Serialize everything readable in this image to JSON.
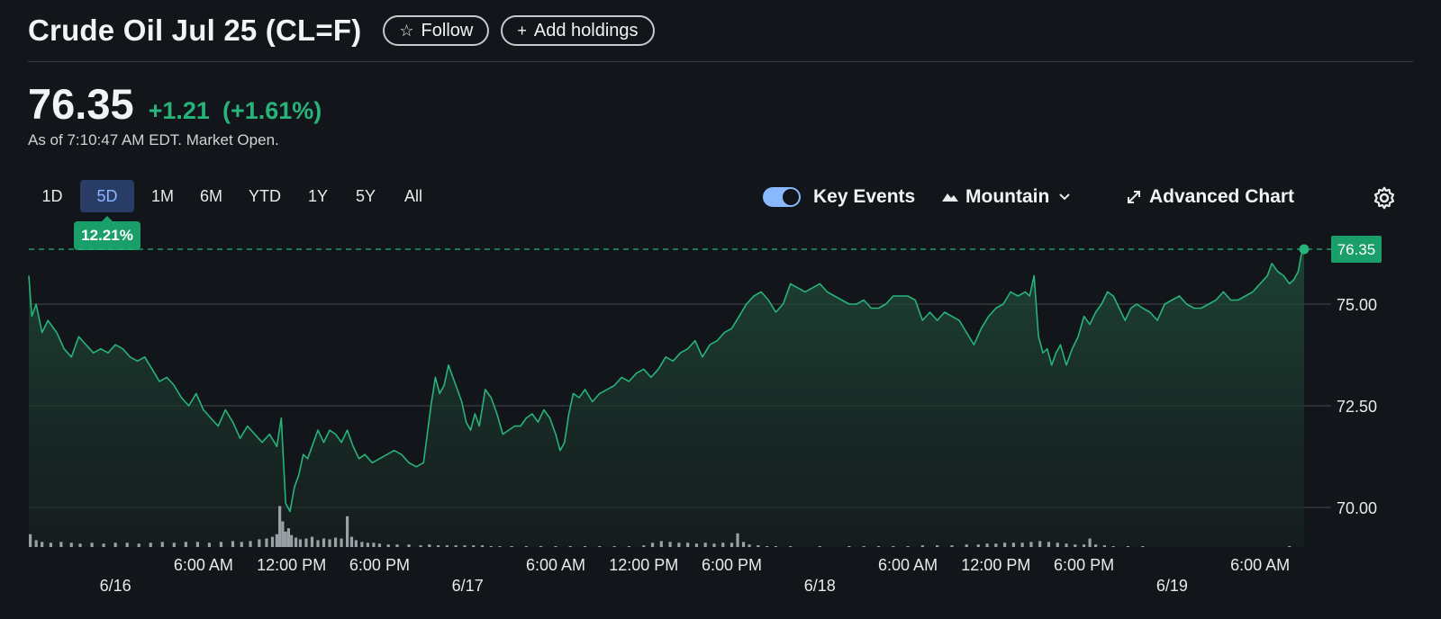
{
  "header": {
    "title": "Crude Oil Jul 25 (CL=F)",
    "follow_label": "Follow",
    "add_holdings_label": "Add holdings"
  },
  "quote": {
    "price": "76.35",
    "change": "+1.21",
    "change_pct": "(+1.61%)",
    "as_of": "As of 7:10:47 AM EDT. Market Open."
  },
  "ranges": [
    "1D",
    "5D",
    "1M",
    "6M",
    "YTD",
    "1Y",
    "5Y",
    "All"
  ],
  "active_range": "5D",
  "range_badge": "12.21%",
  "toolbar": {
    "key_events_label": "Key Events",
    "key_events_on": true,
    "chart_type_label": "Mountain",
    "advanced_label": "Advanced Chart"
  },
  "colors": {
    "line": "#27b37a",
    "accent_blue": "#8ab8ff",
    "volume": "#9aa0a6",
    "background": "#121519"
  },
  "chart_data": {
    "type": "area",
    "ylim": [
      69.1,
      77.0
    ],
    "y_ticks": [
      "75.00",
      "72.50",
      "70.00"
    ],
    "y_tick_values": [
      75.0,
      72.5,
      70.0
    ],
    "last_price_label": "76.35",
    "last_price": 76.35,
    "x_time_labels": [
      "6:00 AM",
      "12:00 PM",
      "6:00 PM",
      "6:00 AM",
      "12:00 PM",
      "6:00 PM",
      "6:00 AM",
      "12:00 PM",
      "6:00 PM",
      "6:00 AM"
    ],
    "x_time_hours": [
      30,
      36,
      42,
      54,
      60,
      66,
      78,
      84,
      90,
      102
    ],
    "x_date_labels": [
      "6/16",
      "6/17",
      "6/18",
      "6/19"
    ],
    "x_date_hours": [
      24,
      48,
      72,
      96
    ],
    "x_range_hours": [
      18.1,
      105.0
    ],
    "series": [
      {
        "points": [
          [
            18.1,
            75.7
          ],
          [
            18.3,
            74.7
          ],
          [
            18.6,
            75.0
          ],
          [
            19.0,
            74.3
          ],
          [
            19.4,
            74.6
          ],
          [
            20.0,
            74.3
          ],
          [
            20.5,
            73.9
          ],
          [
            21.0,
            73.7
          ],
          [
            21.5,
            74.2
          ],
          [
            22.0,
            74.0
          ],
          [
            22.5,
            73.8
          ],
          [
            23.0,
            73.9
          ],
          [
            23.5,
            73.8
          ],
          [
            24.0,
            74.0
          ],
          [
            24.5,
            73.9
          ],
          [
            25.0,
            73.7
          ],
          [
            25.5,
            73.6
          ],
          [
            26.0,
            73.7
          ],
          [
            26.5,
            73.4
          ],
          [
            27.0,
            73.1
          ],
          [
            27.5,
            73.2
          ],
          [
            28.0,
            73.0
          ],
          [
            28.5,
            72.7
          ],
          [
            29.0,
            72.5
          ],
          [
            29.5,
            72.8
          ],
          [
            30.0,
            72.4
          ],
          [
            30.5,
            72.2
          ],
          [
            31.0,
            72.0
          ],
          [
            31.5,
            72.4
          ],
          [
            32.0,
            72.1
          ],
          [
            32.5,
            71.7
          ],
          [
            33.0,
            72.0
          ],
          [
            33.5,
            71.8
          ],
          [
            34.0,
            71.6
          ],
          [
            34.5,
            71.8
          ],
          [
            35.0,
            71.5
          ],
          [
            35.3,
            72.2
          ],
          [
            35.6,
            70.1
          ],
          [
            35.9,
            69.9
          ],
          [
            36.2,
            70.5
          ],
          [
            36.5,
            70.8
          ],
          [
            36.8,
            71.3
          ],
          [
            37.1,
            71.2
          ],
          [
            37.5,
            71.6
          ],
          [
            37.8,
            71.9
          ],
          [
            38.2,
            71.6
          ],
          [
            38.6,
            71.9
          ],
          [
            39.0,
            71.8
          ],
          [
            39.4,
            71.6
          ],
          [
            39.8,
            71.9
          ],
          [
            40.2,
            71.5
          ],
          [
            40.6,
            71.2
          ],
          [
            41.0,
            71.3
          ],
          [
            41.5,
            71.1
          ],
          [
            42.0,
            71.2
          ],
          [
            42.5,
            71.3
          ],
          [
            43.0,
            71.4
          ],
          [
            43.5,
            71.3
          ],
          [
            44.0,
            71.1
          ],
          [
            44.5,
            71.0
          ],
          [
            45.0,
            71.1
          ],
          [
            45.5,
            72.5
          ],
          [
            45.8,
            73.2
          ],
          [
            46.1,
            72.8
          ],
          [
            46.4,
            73.0
          ],
          [
            46.7,
            73.5
          ],
          [
            47.0,
            73.2
          ],
          [
            47.3,
            72.9
          ],
          [
            47.6,
            72.6
          ],
          [
            47.9,
            72.1
          ],
          [
            48.2,
            71.9
          ],
          [
            48.5,
            72.3
          ],
          [
            48.8,
            72.0
          ],
          [
            49.2,
            72.9
          ],
          [
            49.6,
            72.7
          ],
          [
            50.0,
            72.3
          ],
          [
            50.4,
            71.8
          ],
          [
            50.8,
            71.9
          ],
          [
            51.2,
            72.0
          ],
          [
            51.6,
            72.0
          ],
          [
            52.0,
            72.2
          ],
          [
            52.4,
            72.3
          ],
          [
            52.8,
            72.1
          ],
          [
            53.2,
            72.4
          ],
          [
            53.6,
            72.2
          ],
          [
            54.0,
            71.8
          ],
          [
            54.3,
            71.4
          ],
          [
            54.6,
            71.6
          ],
          [
            54.9,
            72.3
          ],
          [
            55.2,
            72.8
          ],
          [
            55.6,
            72.7
          ],
          [
            56.0,
            72.9
          ],
          [
            56.5,
            72.6
          ],
          [
            57.0,
            72.8
          ],
          [
            57.5,
            72.9
          ],
          [
            58.0,
            73.0
          ],
          [
            58.5,
            73.2
          ],
          [
            59.0,
            73.1
          ],
          [
            59.5,
            73.3
          ],
          [
            60.0,
            73.4
          ],
          [
            60.5,
            73.2
          ],
          [
            61.0,
            73.4
          ],
          [
            61.5,
            73.7
          ],
          [
            62.0,
            73.6
          ],
          [
            62.5,
            73.8
          ],
          [
            63.0,
            73.9
          ],
          [
            63.5,
            74.1
          ],
          [
            64.0,
            73.7
          ],
          [
            64.5,
            74.0
          ],
          [
            65.0,
            74.1
          ],
          [
            65.5,
            74.3
          ],
          [
            66.0,
            74.4
          ],
          [
            66.5,
            74.7
          ],
          [
            67.0,
            75.0
          ],
          [
            67.5,
            75.2
          ],
          [
            68.0,
            75.3
          ],
          [
            68.5,
            75.1
          ],
          [
            69.0,
            74.8
          ],
          [
            69.5,
            75.0
          ],
          [
            70.0,
            75.5
          ],
          [
            70.5,
            75.4
          ],
          [
            71.0,
            75.3
          ],
          [
            71.5,
            75.4
          ],
          [
            72.0,
            75.5
          ],
          [
            72.5,
            75.3
          ],
          [
            73.0,
            75.2
          ],
          [
            73.5,
            75.1
          ],
          [
            74.0,
            75.0
          ],
          [
            74.5,
            75.0
          ],
          [
            75.0,
            75.1
          ],
          [
            75.5,
            74.9
          ],
          [
            76.0,
            74.9
          ],
          [
            76.5,
            75.0
          ],
          [
            77.0,
            75.2
          ],
          [
            77.5,
            75.2
          ],
          [
            78.0,
            75.2
          ],
          [
            78.5,
            75.1
          ],
          [
            79.0,
            74.6
          ],
          [
            79.5,
            74.8
          ],
          [
            80.0,
            74.6
          ],
          [
            80.5,
            74.8
          ],
          [
            81.0,
            74.7
          ],
          [
            81.5,
            74.6
          ],
          [
            82.0,
            74.3
          ],
          [
            82.5,
            74.0
          ],
          [
            83.0,
            74.4
          ],
          [
            83.5,
            74.7
          ],
          [
            84.0,
            74.9
          ],
          [
            84.5,
            75.0
          ],
          [
            85.0,
            75.3
          ],
          [
            85.5,
            75.2
          ],
          [
            86.0,
            75.3
          ],
          [
            86.3,
            75.2
          ],
          [
            86.6,
            75.7
          ],
          [
            86.9,
            74.2
          ],
          [
            87.2,
            73.8
          ],
          [
            87.5,
            73.9
          ],
          [
            87.8,
            73.5
          ],
          [
            88.1,
            73.8
          ],
          [
            88.4,
            74.0
          ],
          [
            88.8,
            73.5
          ],
          [
            89.2,
            73.9
          ],
          [
            89.6,
            74.2
          ],
          [
            90.0,
            74.7
          ],
          [
            90.4,
            74.5
          ],
          [
            90.8,
            74.8
          ],
          [
            91.2,
            75.0
          ],
          [
            91.6,
            75.3
          ],
          [
            92.0,
            75.2
          ],
          [
            92.4,
            74.9
          ],
          [
            92.8,
            74.6
          ],
          [
            93.2,
            74.9
          ],
          [
            93.6,
            75.0
          ],
          [
            94.0,
            74.9
          ],
          [
            94.5,
            74.8
          ],
          [
            95.0,
            74.6
          ],
          [
            95.5,
            75.0
          ],
          [
            96.0,
            75.1
          ],
          [
            96.5,
            75.2
          ],
          [
            97.0,
            75.0
          ],
          [
            97.5,
            74.9
          ],
          [
            98.0,
            74.9
          ],
          [
            98.5,
            75.0
          ],
          [
            99.0,
            75.1
          ],
          [
            99.5,
            75.3
          ],
          [
            100.0,
            75.1
          ],
          [
            100.5,
            75.1
          ],
          [
            101.0,
            75.2
          ],
          [
            101.5,
            75.3
          ],
          [
            102.0,
            75.5
          ],
          [
            102.5,
            75.7
          ],
          [
            102.8,
            76.0
          ],
          [
            103.2,
            75.8
          ],
          [
            103.6,
            75.7
          ],
          [
            104.0,
            75.5
          ],
          [
            104.3,
            75.6
          ],
          [
            104.6,
            75.8
          ],
          [
            104.8,
            76.2
          ],
          [
            105.0,
            76.35
          ]
        ]
      }
    ],
    "volume": {
      "x_range_hours": [
        18.1,
        105.0
      ],
      "bars": [
        [
          18.2,
          0.15
        ],
        [
          18.6,
          0.08
        ],
        [
          19.0,
          0.06
        ],
        [
          19.6,
          0.05
        ],
        [
          20.3,
          0.06
        ],
        [
          21.0,
          0.05
        ],
        [
          21.6,
          0.04
        ],
        [
          22.4,
          0.05
        ],
        [
          23.2,
          0.04
        ],
        [
          24.0,
          0.05
        ],
        [
          24.8,
          0.05
        ],
        [
          25.6,
          0.04
        ],
        [
          26.4,
          0.05
        ],
        [
          27.2,
          0.06
        ],
        [
          28.0,
          0.05
        ],
        [
          28.8,
          0.06
        ],
        [
          29.6,
          0.06
        ],
        [
          30.4,
          0.05
        ],
        [
          31.2,
          0.06
        ],
        [
          32.0,
          0.07
        ],
        [
          32.6,
          0.06
        ],
        [
          33.2,
          0.07
        ],
        [
          33.8,
          0.09
        ],
        [
          34.3,
          0.1
        ],
        [
          34.7,
          0.12
        ],
        [
          35.0,
          0.15
        ],
        [
          35.2,
          0.48
        ],
        [
          35.4,
          0.3
        ],
        [
          35.6,
          0.18
        ],
        [
          35.8,
          0.22
        ],
        [
          36.0,
          0.14
        ],
        [
          36.3,
          0.11
        ],
        [
          36.6,
          0.09
        ],
        [
          37.0,
          0.1
        ],
        [
          37.4,
          0.12
        ],
        [
          37.8,
          0.08
        ],
        [
          38.2,
          0.1
        ],
        [
          38.6,
          0.09
        ],
        [
          39.0,
          0.11
        ],
        [
          39.4,
          0.1
        ],
        [
          39.8,
          0.36
        ],
        [
          40.1,
          0.12
        ],
        [
          40.4,
          0.08
        ],
        [
          40.8,
          0.06
        ],
        [
          41.2,
          0.05
        ],
        [
          41.6,
          0.05
        ],
        [
          42.0,
          0.04
        ],
        [
          42.6,
          0.03
        ],
        [
          43.2,
          0.03
        ],
        [
          44.0,
          0.03
        ],
        [
          44.8,
          0.02
        ],
        [
          45.4,
          0.03
        ],
        [
          46.0,
          0.02
        ],
        [
          46.6,
          0.02
        ],
        [
          47.2,
          0.02
        ],
        [
          47.8,
          0.02
        ],
        [
          48.4,
          0.02
        ],
        [
          49.0,
          0.02
        ],
        [
          49.6,
          0.01
        ],
        [
          50.2,
          0.01
        ],
        [
          51.0,
          0.01
        ],
        [
          52.0,
          0.01
        ],
        [
          53.0,
          0.01
        ],
        [
          54.0,
          0.01
        ],
        [
          55.0,
          0.01
        ],
        [
          56.0,
          0.01
        ],
        [
          57.0,
          0.01
        ],
        [
          58.0,
          0.01
        ],
        [
          59.0,
          0.01
        ],
        [
          60.0,
          0.02
        ],
        [
          60.6,
          0.05
        ],
        [
          61.2,
          0.07
        ],
        [
          61.8,
          0.06
        ],
        [
          62.4,
          0.05
        ],
        [
          63.0,
          0.05
        ],
        [
          63.6,
          0.04
        ],
        [
          64.2,
          0.05
        ],
        [
          64.8,
          0.04
        ],
        [
          65.4,
          0.05
        ],
        [
          66.0,
          0.05
        ],
        [
          66.4,
          0.16
        ],
        [
          66.8,
          0.06
        ],
        [
          67.2,
          0.03
        ],
        [
          67.8,
          0.02
        ],
        [
          68.4,
          0.01
        ],
        [
          69.0,
          0.01
        ],
        [
          70.0,
          0.01
        ],
        [
          72.0,
          0.01
        ],
        [
          74.0,
          0.01
        ],
        [
          75.0,
          0.01
        ],
        [
          76.0,
          0.01
        ],
        [
          77.0,
          0.01
        ],
        [
          78.0,
          0.01
        ],
        [
          79.0,
          0.02
        ],
        [
          80.0,
          0.02
        ],
        [
          81.0,
          0.02
        ],
        [
          82.0,
          0.03
        ],
        [
          82.8,
          0.03
        ],
        [
          83.4,
          0.04
        ],
        [
          84.0,
          0.04
        ],
        [
          84.6,
          0.05
        ],
        [
          85.2,
          0.05
        ],
        [
          85.8,
          0.05
        ],
        [
          86.4,
          0.06
        ],
        [
          87.0,
          0.07
        ],
        [
          87.6,
          0.06
        ],
        [
          88.2,
          0.05
        ],
        [
          88.8,
          0.04
        ],
        [
          89.4,
          0.03
        ],
        [
          90.0,
          0.03
        ],
        [
          90.4,
          0.1
        ],
        [
          90.8,
          0.03
        ],
        [
          91.4,
          0.02
        ],
        [
          92.0,
          0.01
        ],
        [
          93.0,
          0.01
        ],
        [
          94.0,
          0.01
        ],
        [
          104.0,
          0.01
        ]
      ]
    }
  }
}
